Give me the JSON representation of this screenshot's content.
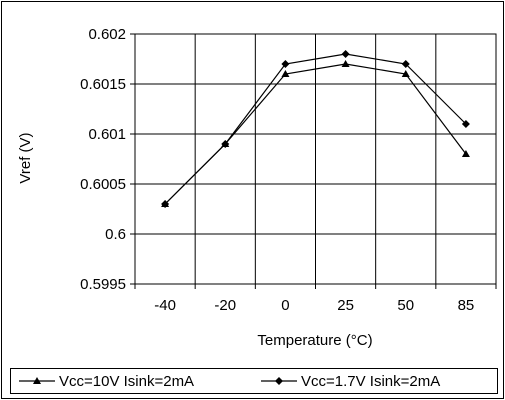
{
  "chart_data": {
    "type": "line",
    "title": "",
    "xlabel": "Temperature (°C)",
    "ylabel": "Vref (V)",
    "categories": [
      "-40",
      "-20",
      "0",
      "25",
      "50",
      "85"
    ],
    "ylim": [
      0.5995,
      0.602
    ],
    "yticks": [
      "0.602",
      "0.6015",
      "0.601",
      "0.6005",
      "0.6",
      "0.5995"
    ],
    "grid": true,
    "legend_position": "bottom",
    "series": [
      {
        "name": "Vcc=10V Isink=2mA",
        "marker": "triangle",
        "values": [
          0.6003,
          0.6009,
          0.6016,
          0.6017,
          0.6016,
          0.6008
        ]
      },
      {
        "name": "Vcc=1.7V Isink=2mA",
        "marker": "diamond",
        "values": [
          0.6003,
          0.6009,
          0.6017,
          0.6018,
          0.6017,
          0.6011
        ]
      }
    ],
    "colors": {
      "line": "#000000",
      "grid": "#000000",
      "background": "#ffffff"
    }
  }
}
